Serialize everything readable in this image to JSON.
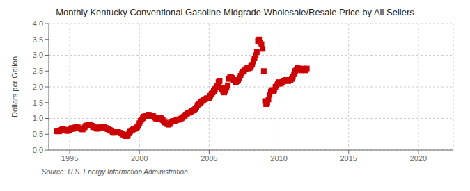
{
  "chart_data": {
    "type": "scatter",
    "title": "Monthly Kentucky Conventional Gasoline Midgrade Wholesale/Resale Price by All Sellers",
    "ylabel": "Dollars per Gallon",
    "annotations": [
      "Source: U.S. Energy Information Administration"
    ],
    "color": "#cc0000",
    "marker": "square",
    "grid": true,
    "xlim": [
      1993.5,
      2022.5
    ],
    "ylim": [
      0.0,
      4.0
    ],
    "xticks": [
      1995,
      2000,
      2005,
      2010,
      2015,
      2020
    ],
    "yticks": [
      {
        "value": 0,
        "label": "0.0"
      },
      0.5,
      {
        "value": 1,
        "label": "1.0"
      },
      1.5,
      {
        "value": 2,
        "label": "2.0"
      },
      2.5,
      {
        "value": 3,
        "label": "3.0"
      },
      3.5,
      {
        "value": 4,
        "label": "4.0"
      }
    ],
    "x": [
      1994.083,
      1994.167,
      1994.25,
      1994.333,
      1994.417,
      1994.5,
      1994.583,
      1994.667,
      1994.75,
      1994.833,
      1994.917,
      1995.0,
      1995.083,
      1995.167,
      1995.25,
      1995.333,
      1995.417,
      1995.5,
      1995.583,
      1995.667,
      1995.75,
      1995.833,
      1995.917,
      1996.0,
      1996.083,
      1996.167,
      1996.25,
      1996.333,
      1996.417,
      1996.5,
      1996.583,
      1996.667,
      1996.75,
      1996.833,
      1996.917,
      1997.0,
      1997.083,
      1997.167,
      1997.25,
      1997.333,
      1997.417,
      1997.5,
      1997.583,
      1997.667,
      1997.75,
      1997.833,
      1997.917,
      1998.0,
      1998.083,
      1998.167,
      1998.25,
      1998.333,
      1998.417,
      1998.5,
      1998.583,
      1998.667,
      1998.75,
      1998.833,
      1998.917,
      1999.0,
      1999.083,
      1999.167,
      1999.25,
      1999.333,
      1999.417,
      1999.5,
      1999.583,
      1999.667,
      1999.75,
      1999.833,
      1999.917,
      2000.0,
      2000.083,
      2000.167,
      2000.25,
      2000.333,
      2000.417,
      2000.5,
      2000.583,
      2000.667,
      2000.75,
      2000.833,
      2000.917,
      2001.0,
      2001.083,
      2001.167,
      2001.25,
      2001.333,
      2001.417,
      2001.5,
      2001.583,
      2001.667,
      2001.75,
      2001.833,
      2001.917,
      2002.0,
      2002.083,
      2002.167,
      2002.25,
      2002.333,
      2002.417,
      2002.5,
      2002.583,
      2002.667,
      2002.75,
      2002.833,
      2002.917,
      2003.0,
      2003.083,
      2003.167,
      2003.25,
      2003.333,
      2003.417,
      2003.5,
      2003.583,
      2003.667,
      2003.75,
      2003.833,
      2003.917,
      2004.0,
      2004.083,
      2004.167,
      2004.25,
      2004.333,
      2004.417,
      2004.5,
      2004.583,
      2004.667,
      2004.75,
      2004.833,
      2004.917,
      2005.0,
      2005.083,
      2005.167,
      2005.25,
      2005.333,
      2005.417,
      2005.5,
      2005.583,
      2005.667,
      2005.75,
      2005.833,
      2005.917,
      2006.0,
      2006.083,
      2006.167,
      2006.25,
      2006.333,
      2006.417,
      2006.5,
      2006.583,
      2006.667,
      2006.75,
      2006.833,
      2006.917,
      2007.0,
      2007.083,
      2007.167,
      2007.25,
      2007.333,
      2007.417,
      2007.5,
      2007.583,
      2007.667,
      2007.75,
      2007.833,
      2007.917,
      2008.0,
      2008.083,
      2008.167,
      2008.25,
      2008.333,
      2008.417,
      2008.5,
      2008.583,
      2008.667,
      2008.75,
      2008.833,
      2008.917,
      2009.0,
      2009.083,
      2009.167,
      2009.25,
      2009.333,
      2009.417,
      2009.5,
      2009.583,
      2009.667,
      2009.75,
      2009.833,
      2009.917,
      2010.0,
      2010.083,
      2010.167,
      2010.25,
      2010.333,
      2010.417,
      2010.5,
      2010.583,
      2010.667,
      2010.75,
      2010.833,
      2010.917,
      2011.0,
      2011.083,
      2011.167,
      2011.25,
      2011.333,
      2011.417,
      2011.5,
      2011.583,
      2011.667,
      2011.75,
      2011.833,
      2011.917,
      2012.0
    ],
    "values": [
      0.59,
      0.6,
      0.59,
      0.61,
      0.64,
      0.67,
      0.65,
      0.62,
      0.63,
      0.6,
      0.64,
      0.62,
      0.66,
      0.7,
      0.67,
      0.69,
      0.72,
      0.72,
      0.72,
      0.69,
      0.68,
      0.66,
      0.65,
      0.67,
      0.72,
      0.77,
      0.78,
      0.79,
      0.8,
      0.79,
      0.77,
      0.73,
      0.72,
      0.71,
      0.68,
      0.67,
      0.7,
      0.72,
      0.71,
      0.72,
      0.73,
      0.72,
      0.7,
      0.67,
      0.66,
      0.64,
      0.63,
      0.6,
      0.57,
      0.54,
      0.55,
      0.56,
      0.57,
      0.56,
      0.55,
      0.53,
      0.52,
      0.49,
      0.47,
      0.44,
      0.44,
      0.47,
      0.53,
      0.58,
      0.62,
      0.64,
      0.66,
      0.67,
      0.68,
      0.72,
      0.76,
      0.85,
      0.92,
      0.96,
      1.01,
      1.06,
      1.07,
      1.08,
      1.1,
      1.12,
      1.1,
      1.08,
      1.09,
      1.07,
      1.03,
      1.0,
      0.98,
      0.99,
      1.01,
      1.03,
      1.0,
      0.95,
      0.91,
      0.87,
      0.84,
      0.82,
      0.8,
      0.82,
      0.87,
      0.9,
      0.92,
      0.92,
      0.93,
      0.95,
      0.97,
      0.96,
      0.98,
      1.0,
      1.02,
      1.05,
      1.09,
      1.12,
      1.15,
      1.18,
      1.18,
      1.2,
      1.23,
      1.25,
      1.27,
      1.3,
      1.35,
      1.42,
      1.45,
      1.48,
      1.52,
      1.55,
      1.58,
      1.6,
      1.62,
      1.64,
      1.63,
      1.65,
      1.72,
      1.78,
      1.82,
      1.87,
      1.93,
      1.98,
      2.02,
      2.15,
      2.18,
      1.98,
      1.92,
      1.85,
      1.82,
      1.88,
      1.97,
      2.05,
      2.25,
      2.32,
      2.3,
      2.28,
      2.22,
      2.2,
      2.15,
      2.18,
      2.22,
      2.28,
      2.35,
      2.42,
      2.48,
      2.5,
      2.55,
      2.58,
      2.6,
      2.58,
      2.6,
      2.65,
      2.7,
      2.8,
      2.9,
      3.0,
      3.1,
      3.45,
      3.5,
      3.4,
      3.35,
      3.2,
      2.5,
      1.55,
      1.45,
      1.5,
      1.6,
      1.75,
      1.85,
      1.9,
      1.85,
      1.9,
      2.0,
      2.05,
      2.1,
      2.15,
      2.1,
      2.12,
      2.15,
      2.18,
      2.2,
      2.22,
      2.2,
      2.18,
      2.2,
      2.22,
      2.25,
      2.32,
      2.4,
      2.5,
      2.55,
      2.6,
      2.58,
      2.55,
      2.52,
      2.55,
      2.58,
      2.55,
      2.52,
      2.58
    ]
  }
}
